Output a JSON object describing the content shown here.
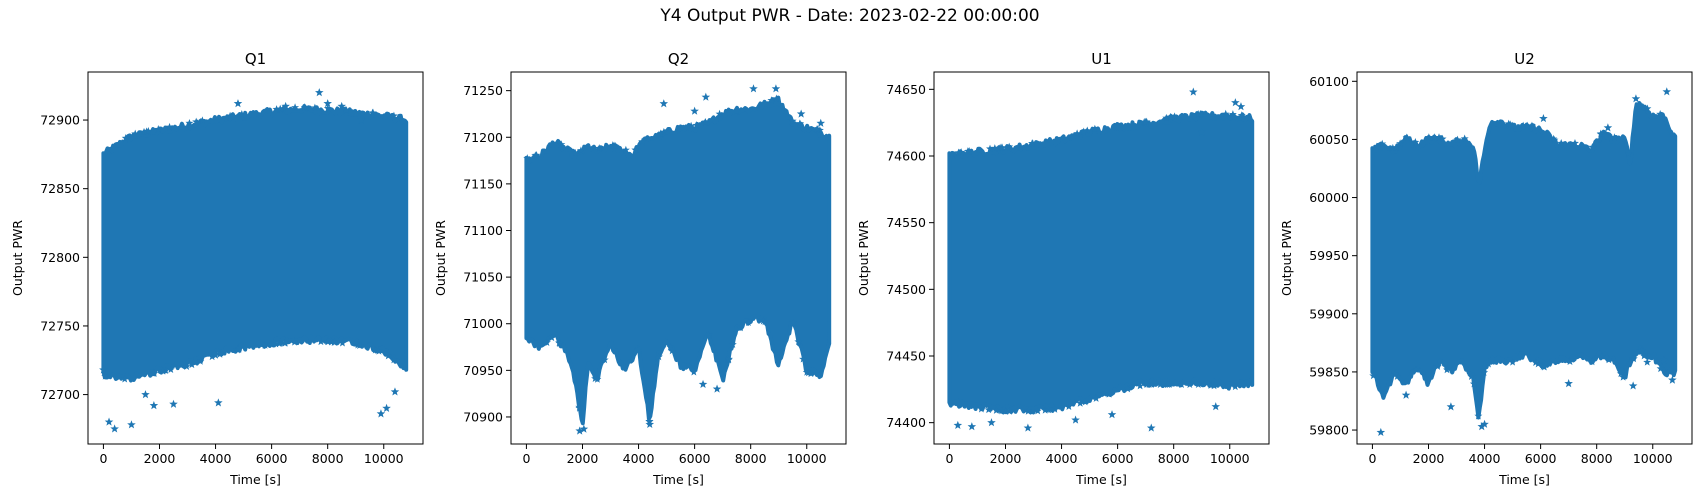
{
  "figure": {
    "suptitle": "Y4 Output PWR - Date: 2023-02-22 00:00:00"
  },
  "chart_data": [
    {
      "type": "scatter",
      "title": "Q1",
      "xlabel": "Time [s]",
      "ylabel": "Output PWR",
      "marker": "star",
      "color": "#1f77b4",
      "xlim": [
        -550,
        11400
      ],
      "ylim": [
        72664,
        72935
      ],
      "xticks": [
        0,
        2000,
        4000,
        6000,
        8000,
        10000
      ],
      "yticks": [
        72700,
        72750,
        72800,
        72850,
        72900
      ],
      "x_range": [
        0,
        10800
      ],
      "band": {
        "x": [
          0,
          1000,
          2000,
          3000,
          4000,
          5000,
          6000,
          7000,
          8000,
          9000,
          10000,
          10800
        ],
        "upper": [
          72875,
          72888,
          72892,
          72896,
          72900,
          72903,
          72906,
          72908,
          72907,
          72905,
          72903,
          72900
        ],
        "lower": [
          72715,
          72712,
          72718,
          72722,
          72730,
          72735,
          72738,
          72740,
          72740,
          72738,
          72732,
          72720
        ]
      },
      "outliers": [
        [
          0,
          72718
        ],
        [
          200,
          72680
        ],
        [
          400,
          72675
        ],
        [
          1000,
          72678
        ],
        [
          1500,
          72700
        ],
        [
          1800,
          72692
        ],
        [
          2500,
          72693
        ],
        [
          4100,
          72694
        ],
        [
          4800,
          72912
        ],
        [
          6500,
          72910
        ],
        [
          7700,
          72920
        ],
        [
          8000,
          72912
        ],
        [
          8500,
          72910
        ],
        [
          9200,
          72900
        ],
        [
          9900,
          72686
        ],
        [
          10100,
          72690
        ],
        [
          10400,
          72702
        ]
      ]
    },
    {
      "type": "scatter",
      "title": "Q2",
      "xlabel": "Time [s]",
      "ylabel": "Output PWR",
      "marker": "star",
      "color": "#1f77b4",
      "xlim": [
        -550,
        11400
      ],
      "ylim": [
        70871,
        71270
      ],
      "xticks": [
        0,
        2000,
        4000,
        6000,
        8000,
        10000
      ],
      "yticks": [
        70900,
        70950,
        71000,
        71050,
        71100,
        71150,
        71200,
        71250
      ],
      "x_range": [
        0,
        10800
      ],
      "band": {
        "x": [
          0,
          500,
          1000,
          1500,
          1800,
          2000,
          2200,
          2500,
          3000,
          3500,
          3800,
          4000,
          4400,
          4700,
          5000,
          5500,
          6000,
          6500,
          7000,
          7500,
          8000,
          8500,
          9000,
          9500,
          10000,
          10500,
          10800
        ],
        "upper": [
          71175,
          71180,
          71195,
          71185,
          71180,
          71185,
          71190,
          71185,
          71190,
          71185,
          71180,
          71190,
          71200,
          71200,
          71205,
          71210,
          71210,
          71215,
          71225,
          71230,
          71230,
          71235,
          71240,
          71215,
          71210,
          71205,
          71200
        ],
        "lower": [
          70985,
          70975,
          70990,
          70965,
          70930,
          70890,
          70960,
          70940,
          70980,
          70950,
          70965,
          70975,
          70895,
          70965,
          70985,
          70955,
          70950,
          70990,
          70940,
          70995,
          71005,
          71005,
          70955,
          71005,
          70950,
          70945,
          70975
        ]
      },
      "outliers": [
        [
          1900,
          70885
        ],
        [
          2050,
          70887
        ],
        [
          4400,
          70892
        ],
        [
          6300,
          70935
        ],
        [
          6800,
          70930
        ],
        [
          6400,
          71243
        ],
        [
          7500,
          71228
        ],
        [
          8100,
          71252
        ],
        [
          8900,
          71252
        ],
        [
          9800,
          71225
        ],
        [
          10500,
          71215
        ],
        [
          4900,
          71236
        ],
        [
          6000,
          71228
        ]
      ]
    },
    {
      "type": "scatter",
      "title": "U1",
      "xlabel": "Time [s]",
      "ylabel": "Output PWR",
      "marker": "star",
      "color": "#1f77b4",
      "xlim": [
        -550,
        11400
      ],
      "ylim": [
        74384,
        74663
      ],
      "xticks": [
        0,
        2000,
        4000,
        6000,
        8000,
        10000
      ],
      "yticks": [
        74400,
        74450,
        74500,
        74550,
        74600,
        74650
      ],
      "x_range": [
        0,
        10800
      ],
      "band": {
        "x": [
          0,
          1000,
          2000,
          3000,
          4000,
          5000,
          6000,
          7000,
          8000,
          9000,
          10000,
          10800
        ],
        "upper": [
          74600,
          74603,
          74605,
          74608,
          74612,
          74618,
          74622,
          74624,
          74628,
          74630,
          74630,
          74628
        ],
        "lower": [
          74415,
          74412,
          74410,
          74410,
          74412,
          74418,
          74425,
          74430,
          74430,
          74430,
          74428,
          74430
        ]
      },
      "outliers": [
        [
          300,
          74398
        ],
        [
          800,
          74397
        ],
        [
          1500,
          74400
        ],
        [
          2800,
          74396
        ],
        [
          4500,
          74402
        ],
        [
          5800,
          74406
        ],
        [
          7200,
          74396
        ],
        [
          8700,
          74648
        ],
        [
          9500,
          74412
        ],
        [
          10200,
          74640
        ],
        [
          10400,
          74637
        ],
        [
          9000,
          74618
        ]
      ]
    },
    {
      "type": "scatter",
      "title": "U2",
      "xlabel": "Time [s]",
      "ylabel": "Output PWR",
      "marker": "star",
      "color": "#1f77b4",
      "xlim": [
        -550,
        11400
      ],
      "ylim": [
        59788,
        60108
      ],
      "xticks": [
        0,
        2000,
        4000,
        6000,
        8000,
        10000
      ],
      "yticks": [
        59800,
        59850,
        59900,
        59950,
        60000,
        60050,
        60100
      ],
      "x_range": [
        0,
        10800
      ],
      "band": {
        "x": [
          0,
          400,
          800,
          1200,
          1600,
          2000,
          2400,
          2800,
          3200,
          3600,
          3800,
          4000,
          4200,
          4600,
          5000,
          5400,
          5800,
          6200,
          6600,
          7000,
          7400,
          7800,
          8200,
          8600,
          9000,
          9200,
          9400,
          9600,
          9800,
          10000,
          10400,
          10800
        ],
        "upper": [
          60040,
          60045,
          60040,
          60050,
          60045,
          60050,
          60050,
          60045,
          60050,
          60045,
          60010,
          60040,
          60065,
          60065,
          60060,
          60060,
          60060,
          60055,
          60045,
          60045,
          60045,
          60040,
          60055,
          60050,
          60050,
          60030,
          60080,
          60080,
          60075,
          60070,
          60070,
          60050
        ],
        "lower": [
          59850,
          59830,
          59850,
          59840,
          59855,
          59840,
          59860,
          59850,
          59860,
          59845,
          59810,
          59855,
          59860,
          59860,
          59860,
          59865,
          59860,
          59855,
          59860,
          59860,
          59865,
          59860,
          59865,
          59860,
          59845,
          59860,
          59865,
          59870,
          59860,
          59865,
          59850,
          59850
        ]
      },
      "outliers": [
        [
          300,
          59798
        ],
        [
          1200,
          59830
        ],
        [
          2800,
          59820
        ],
        [
          3900,
          59803
        ],
        [
          4000,
          59805
        ],
        [
          7000,
          59840
        ],
        [
          9300,
          59838
        ],
        [
          10400,
          59860
        ],
        [
          10700,
          59843
        ],
        [
          9400,
          60085
        ],
        [
          10500,
          60091
        ],
        [
          8400,
          60060
        ],
        [
          6100,
          60068
        ]
      ]
    }
  ]
}
